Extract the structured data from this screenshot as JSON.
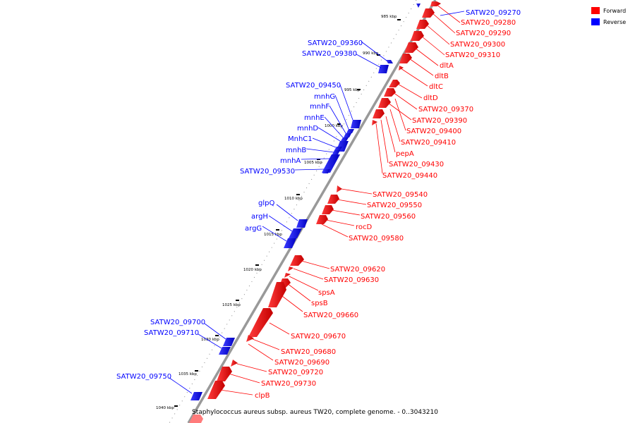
{
  "legend": {
    "forward": {
      "label": "Forward",
      "color": "#ff0000"
    },
    "reverse": {
      "label": "Reverse",
      "color": "#0000ff"
    }
  },
  "caption": "Staphylococcus aureus subsp. aureus TW20, complete genome. - 0..3043210",
  "ticks": [
    "985 kbp",
    "990 kbp",
    "995 kbp",
    "1000 kbp",
    "1005 kbp",
    "1010 kbp",
    "1015 kbp",
    "1020 kbp",
    "1025 kbp",
    "1030 kbp",
    "1035 kbp",
    "1040 kbp"
  ],
  "forward_labels": [
    "SATW20_09280",
    "SATW20_09290",
    "SATW20_09300",
    "SATW20_09310",
    "dltA",
    "dltB",
    "dltC",
    "dltD",
    "SATW20_09370",
    "SATW20_09390",
    "SATW20_09400",
    "SATW20_09410",
    "pepA",
    "SATW20_09430",
    "SATW20_09440",
    "SATW20_09540",
    "SATW20_09550",
    "SATW20_09560",
    "rocD",
    "SATW20_09580",
    "SATW20_09620",
    "SATW20_09630",
    "spsA",
    "spsB",
    "SATW20_09660",
    "SATW20_09670",
    "SATW20_09680",
    "SATW20_09690",
    "SATW20_09720",
    "SATW20_09730",
    "clpB"
  ],
  "reverse_labels": [
    "SATW20_09270",
    "SATW20_09360",
    "SATW20_09380",
    "SATW20_09450",
    "mnhG",
    "mnhF",
    "mnhE",
    "mnhD",
    "MnhC1",
    "mnhB",
    "mnhA",
    "SATW20_09530",
    "glpQ",
    "argH",
    "argG",
    "SATW20_09700",
    "SATW20_09710",
    "SATW20_09750"
  ]
}
